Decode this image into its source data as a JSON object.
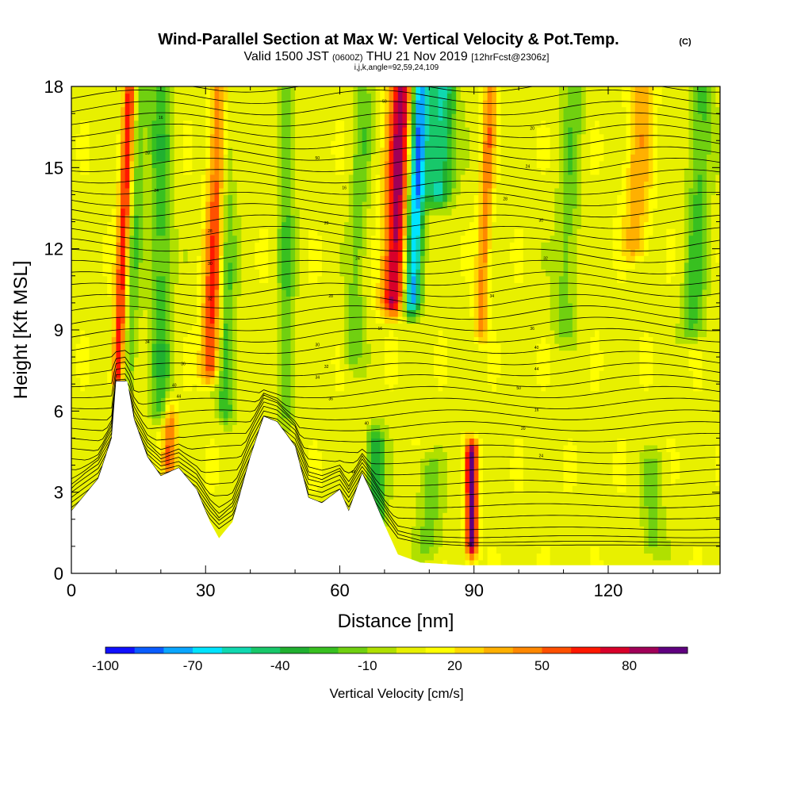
{
  "chart_data": {
    "type": "heatmap",
    "title": "Wind-Parallel Section at Max W: Vertical Velocity & Pot.Temp.",
    "title_mark": "(C)",
    "subtitle": {
      "valid": "Valid 1500 JST",
      "utc": "(0600Z)",
      "date": "THU 21 Nov 2019",
      "forecast": "[12hrFcst@2306z]"
    },
    "params": "i,j,k,angle=92,59,24,109",
    "xlabel": "Distance [nm]",
    "ylabel": "Height [Kft MSL]",
    "xlim": [
      0,
      145
    ],
    "ylim": [
      0,
      18
    ],
    "x_ticks": [
      0,
      30,
      60,
      90,
      120
    ],
    "y_ticks": [
      0,
      3,
      6,
      9,
      12,
      15,
      18
    ],
    "colorbar": {
      "label": "Vertical Velocity [cm/s]",
      "levels": [
        -100,
        -90,
        -80,
        -70,
        -60,
        -50,
        -40,
        -30,
        -20,
        -10,
        0,
        10,
        20,
        30,
        40,
        50,
        60,
        70,
        80,
        90,
        100
      ],
      "tick_labels": [
        -100,
        -70,
        -40,
        -10,
        20,
        50,
        80
      ],
      "colors": [
        "#1010ff",
        "#0a5cff",
        "#0aa6ff",
        "#00e4ff",
        "#10d8b0",
        "#18c86a",
        "#20b030",
        "#38c020",
        "#70d010",
        "#b0e000",
        "#e8f000",
        "#ffff00",
        "#ffd800",
        "#ffb000",
        "#ff8800",
        "#ff5000",
        "#ff1800",
        "#d8002a",
        "#a00058",
        "#600080"
      ]
    },
    "vertical_velocity_bands": [
      {
        "x": 10.5,
        "w": 80,
        "halfwidth": 1.5,
        "y0": 7.2,
        "y1": 18
      },
      {
        "x": 12,
        "w": -35,
        "halfwidth": 2.2,
        "y0": 7.2,
        "y1": 18
      },
      {
        "x": 20,
        "w": -32,
        "halfwidth": 2.5,
        "y0": 6,
        "y1": 18
      },
      {
        "x": 31,
        "w": 60,
        "halfwidth": 2.2,
        "y0": 7.5,
        "y1": 18
      },
      {
        "x": 22,
        "w": 45,
        "halfwidth": 1.6,
        "y0": 4,
        "y1": 6
      },
      {
        "x": 34.5,
        "w": -35,
        "halfwidth": 2,
        "y0": 6,
        "y1": 18
      },
      {
        "x": 48,
        "w": -25,
        "halfwidth": 2,
        "y0": 6,
        "y1": 18
      },
      {
        "x": 63,
        "w": -22,
        "halfwidth": 2,
        "y0": 8,
        "y1": 18
      },
      {
        "x": 72,
        "w": 80,
        "halfwidth": 2.8,
        "y0": 10,
        "y1": 18
      },
      {
        "x": 76,
        "w": -90,
        "halfwidth": 2,
        "y0": 10,
        "y1": 18
      },
      {
        "x": 82,
        "w": -60,
        "halfwidth": 3,
        "y0": 14,
        "y1": 18
      },
      {
        "x": 89.5,
        "w": 90,
        "halfwidth": 1.3,
        "y0": 1,
        "y1": 4.5
      },
      {
        "x": 91.5,
        "w": 40,
        "halfwidth": 1.5,
        "y0": 9,
        "y1": 18
      },
      {
        "x": 110,
        "w": -22,
        "halfwidth": 2.5,
        "y0": 9,
        "y1": 18
      },
      {
        "x": 126,
        "w": 30,
        "halfwidth": 3,
        "y0": 12,
        "y1": 18
      },
      {
        "x": 139,
        "w": -30,
        "halfwidth": 2.5,
        "y0": 9,
        "y1": 18
      },
      {
        "x": 68,
        "w": -45,
        "halfwidth": 2,
        "y0": 2,
        "y1": 5
      },
      {
        "x": 80,
        "w": -20,
        "halfwidth": 3,
        "y0": 1,
        "y1": 4
      },
      {
        "x": 130,
        "w": -20,
        "halfwidth": 2.5,
        "y0": 1,
        "y1": 4
      }
    ],
    "terrain_profile": [
      {
        "x": 0,
        "h": 2.3
      },
      {
        "x": 3,
        "h": 2.9
      },
      {
        "x": 6,
        "h": 3.5
      },
      {
        "x": 9,
        "h": 5
      },
      {
        "x": 10,
        "h": 7.1
      },
      {
        "x": 12.5,
        "h": 7.1
      },
      {
        "x": 14,
        "h": 5.7
      },
      {
        "x": 17,
        "h": 4.3
      },
      {
        "x": 20,
        "h": 3.6
      },
      {
        "x": 24,
        "h": 3.9
      },
      {
        "x": 28,
        "h": 3.1
      },
      {
        "x": 31,
        "h": 1.9
      },
      {
        "x": 33,
        "h": 1.3
      },
      {
        "x": 36,
        "h": 1.9
      },
      {
        "x": 40,
        "h": 4.3
      },
      {
        "x": 43,
        "h": 5.8
      },
      {
        "x": 46,
        "h": 5.6
      },
      {
        "x": 50,
        "h": 4.7
      },
      {
        "x": 53,
        "h": 2.8
      },
      {
        "x": 56,
        "h": 2.6
      },
      {
        "x": 60,
        "h": 3.1
      },
      {
        "x": 62,
        "h": 2.3
      },
      {
        "x": 65,
        "h": 3.7
      },
      {
        "x": 67,
        "h": 3.0
      },
      {
        "x": 70,
        "h": 1.8
      },
      {
        "x": 73,
        "h": 0.7
      },
      {
        "x": 78,
        "h": 0.4
      },
      {
        "x": 88,
        "h": 0.3
      },
      {
        "x": 145,
        "h": 0.3
      }
    ],
    "theta_contour_labels": [
      "16",
      "20",
      "24",
      "28",
      "30",
      "32",
      "34",
      "36",
      "40",
      "44",
      "50"
    ]
  }
}
